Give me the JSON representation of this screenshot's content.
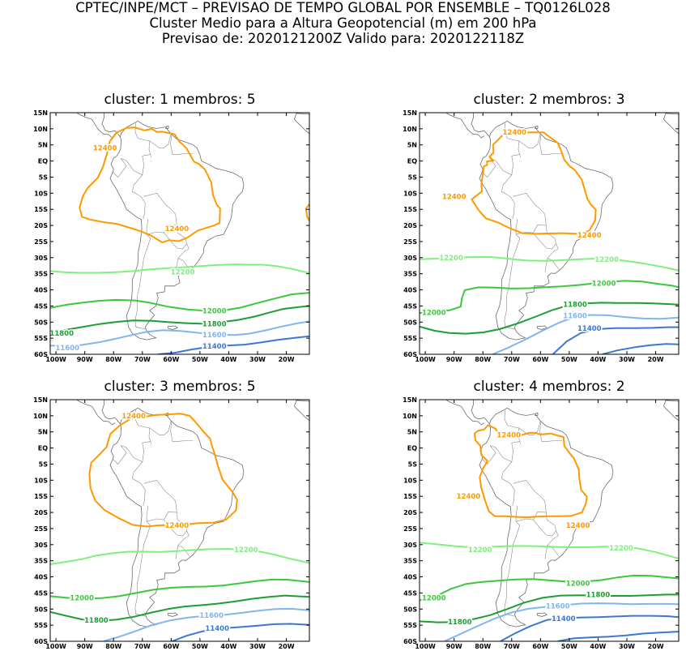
{
  "header": {
    "line1": "CPTEC/INPE/MCT – PREVISAO DE TEMPO GLOBAL POR ENSEMBLE – TQ0126L028",
    "line2": "Cluster Medio para a Altura Geopotencial (m) em 200 hPa",
    "line3": "Previsao de: 2020121200Z   Valido para: 2020122118Z"
  },
  "axes": {
    "lat_labels": [
      "15N",
      "10N",
      "5N",
      "EQ",
      "5S",
      "10S",
      "15S",
      "20S",
      "25S",
      "30S",
      "35S",
      "40S",
      "45S",
      "50S",
      "55S",
      "60S"
    ],
    "lon_labels": [
      "100W",
      "90W",
      "80W",
      "70W",
      "60W",
      "50W",
      "40W",
      "30W",
      "20W"
    ]
  },
  "colors": {
    "c12400": "#ff9900",
    "c12200": "#7ef07e",
    "c12000": "#3cc83c",
    "c11800": "#1e9e32",
    "c11600": "#82b4f0",
    "c11400": "#3c78d2"
  },
  "panels": [
    {
      "title": "cluster: 1   membros: 5",
      "labels": [
        {
          "text": "12400",
          "lon": -83,
          "lat": 4,
          "color": "c12400"
        },
        {
          "text": "12400",
          "lon": -58,
          "lat": -21,
          "color": "c12400"
        },
        {
          "text": "12200",
          "lon": -56,
          "lat": -34.5,
          "color": "c12200"
        },
        {
          "text": "12000",
          "lon": -45,
          "lat": -46.5,
          "color": "c12000"
        },
        {
          "text": "11800",
          "lon": -45,
          "lat": -50.5,
          "color": "c11800"
        },
        {
          "text": "11800",
          "lon": -98,
          "lat": -53.5,
          "color": "c11800"
        },
        {
          "text": "11600",
          "lon": -45,
          "lat": -54,
          "color": "c11600"
        },
        {
          "text": "11600",
          "lon": -96,
          "lat": -58,
          "color": "c11600"
        },
        {
          "text": "11400",
          "lon": -45,
          "lat": -57.5,
          "color": "c11400"
        }
      ]
    },
    {
      "title": "cluster: 2   membros: 3",
      "labels": [
        {
          "text": "12400",
          "lon": -69,
          "lat": 9,
          "color": "c12400"
        },
        {
          "text": "12400",
          "lon": -90,
          "lat": -11,
          "color": "c12400"
        },
        {
          "text": "12400",
          "lon": -43,
          "lat": -23,
          "color": "c12400"
        },
        {
          "text": "12200",
          "lon": -91,
          "lat": -30,
          "color": "c12200"
        },
        {
          "text": "12200",
          "lon": -37,
          "lat": -30.5,
          "color": "c12200"
        },
        {
          "text": "12000",
          "lon": -38,
          "lat": -38,
          "color": "c12000"
        },
        {
          "text": "12000",
          "lon": -97,
          "lat": -47,
          "color": "c12000"
        },
        {
          "text": "11800",
          "lon": -48,
          "lat": -44.5,
          "color": "c11800"
        },
        {
          "text": "11600",
          "lon": -48,
          "lat": -48,
          "color": "c11600"
        },
        {
          "text": "11400",
          "lon": -43,
          "lat": -52,
          "color": "c11400"
        }
      ]
    },
    {
      "title": "cluster: 3   membros: 5",
      "labels": [
        {
          "text": "12400",
          "lon": -73,
          "lat": 10,
          "color": "c12400"
        },
        {
          "text": "12400",
          "lon": -58,
          "lat": -24,
          "color": "c12400"
        },
        {
          "text": "12200",
          "lon": -34,
          "lat": -31.5,
          "color": "c12200"
        },
        {
          "text": "12000",
          "lon": -91,
          "lat": -46.5,
          "color": "c12000"
        },
        {
          "text": "11800",
          "lon": -86,
          "lat": -53.5,
          "color": "c11800"
        },
        {
          "text": "11600",
          "lon": -46,
          "lat": -52,
          "color": "c11600"
        },
        {
          "text": "11400",
          "lon": -44,
          "lat": -56,
          "color": "c11400"
        }
      ]
    },
    {
      "title": "cluster: 4   membros: 2",
      "labels": [
        {
          "text": "12400",
          "lon": -71,
          "lat": 4,
          "color": "c12400"
        },
        {
          "text": "12400",
          "lon": -85,
          "lat": -15,
          "color": "c12400"
        },
        {
          "text": "12400",
          "lon": -47,
          "lat": -24,
          "color": "c12400"
        },
        {
          "text": "12200",
          "lon": -81,
          "lat": -31.5,
          "color": "c12200"
        },
        {
          "text": "12200",
          "lon": -32,
          "lat": -31,
          "color": "c12200"
        },
        {
          "text": "12000",
          "lon": -47,
          "lat": -42,
          "color": "c12000"
        },
        {
          "text": "12000",
          "lon": -97,
          "lat": -46.5,
          "color": "c12000"
        },
        {
          "text": "11800",
          "lon": -40,
          "lat": -45.5,
          "color": "c11800"
        },
        {
          "text": "11800",
          "lon": -88,
          "lat": -54,
          "color": "c11800"
        },
        {
          "text": "11600",
          "lon": -54,
          "lat": -49,
          "color": "c11600"
        },
        {
          "text": "11400",
          "lon": -52,
          "lat": -53,
          "color": "c11400"
        }
      ]
    }
  ]
}
